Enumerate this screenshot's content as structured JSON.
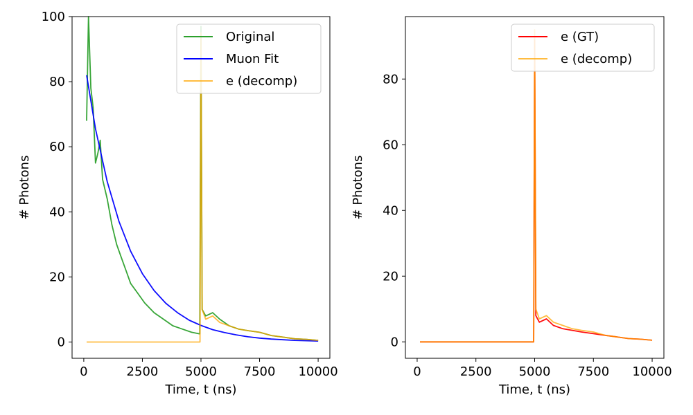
{
  "chart_data": [
    {
      "type": "line",
      "title": "",
      "xlabel": "Time, t (ns)",
      "ylabel": "# Photons",
      "xlim": [
        -500,
        10500
      ],
      "ylim": [
        -5,
        100
      ],
      "xticks": [
        0,
        2500,
        5000,
        7500,
        10000
      ],
      "yticks": [
        0,
        20,
        40,
        60,
        80,
        100
      ],
      "grid": false,
      "legend": "top-right",
      "series": [
        {
          "name": "Original",
          "color": "#2ca02c",
          "x": [
            120,
            200,
            300,
            400,
            500,
            600,
            700,
            800,
            1000,
            1200,
            1400,
            1600,
            1800,
            2000,
            2300,
            2600,
            3000,
            3400,
            3800,
            4200,
            4600,
            4950,
            5000,
            5050,
            5200,
            5500,
            5800,
            6200,
            6600,
            7000,
            7500,
            8000,
            8500,
            9000,
            9500,
            10000
          ],
          "y": [
            68,
            100,
            78,
            72,
            55,
            58,
            62,
            50,
            44,
            36,
            30,
            26,
            22,
            18,
            15,
            12,
            9,
            7,
            5,
            4,
            3,
            2.5,
            97,
            10,
            8,
            9,
            7,
            5,
            4,
            3.5,
            3,
            2,
            1.5,
            1,
            0.8,
            0.5
          ]
        },
        {
          "name": "Muon Fit",
          "color": "#0000ff",
          "x": [
            120,
            500,
            1000,
            1500,
            2000,
            2500,
            3000,
            3500,
            4000,
            4500,
            5000,
            5500,
            6000,
            6500,
            7000,
            7500,
            8000,
            8500,
            9000,
            9500,
            10000
          ],
          "y": [
            82,
            65.5,
            49.3,
            37.1,
            27.9,
            21.0,
            15.8,
            11.9,
            9.0,
            6.7,
            5.1,
            3.8,
            2.9,
            2.2,
            1.6,
            1.2,
            0.9,
            0.7,
            0.5,
            0.4,
            0.3
          ]
        },
        {
          "name": "e (decomp)",
          "color": "#ffa500",
          "x": [
            120,
            4900,
            4960,
            5000,
            5050,
            5200,
            5500,
            5800,
            6200,
            6600,
            7000,
            7500,
            8000,
            8500,
            9000,
            9500,
            10000
          ],
          "y": [
            0,
            0,
            0,
            95,
            10,
            7,
            8,
            6,
            5,
            4,
            3.5,
            3,
            2,
            1.5,
            1,
            0.8,
            0.5
          ]
        }
      ]
    },
    {
      "type": "line",
      "title": "",
      "xlabel": "Time, t (ns)",
      "ylabel": "# Photons",
      "xlim": [
        -500,
        10500
      ],
      "ylim": [
        -5,
        99
      ],
      "xticks": [
        0,
        2500,
        5000,
        7500,
        10000
      ],
      "yticks": [
        0,
        20,
        40,
        60,
        80
      ],
      "grid": false,
      "legend": "top-right",
      "series": [
        {
          "name": "e (GT)",
          "color": "#ff0000",
          "x": [
            120,
            4900,
            4960,
            5000,
            5050,
            5200,
            5500,
            5800,
            6200,
            6600,
            7000,
            7500,
            8000,
            8500,
            9000,
            9500,
            10000
          ],
          "y": [
            0,
            0,
            0,
            92,
            8,
            6,
            7,
            5,
            4,
            3.5,
            3,
            2.5,
            2,
            1.5,
            1,
            0.8,
            0.5
          ]
        },
        {
          "name": "e (decomp)",
          "color": "#ffa500",
          "x": [
            120,
            4900,
            4960,
            5000,
            5050,
            5200,
            5500,
            5800,
            6200,
            6600,
            7000,
            7500,
            8000,
            8500,
            9000,
            9500,
            10000
          ],
          "y": [
            0,
            0,
            0,
            95,
            10,
            7,
            8,
            6,
            5,
            4,
            3.5,
            3,
            2,
            1.5,
            1,
            0.8,
            0.5
          ]
        }
      ]
    }
  ]
}
